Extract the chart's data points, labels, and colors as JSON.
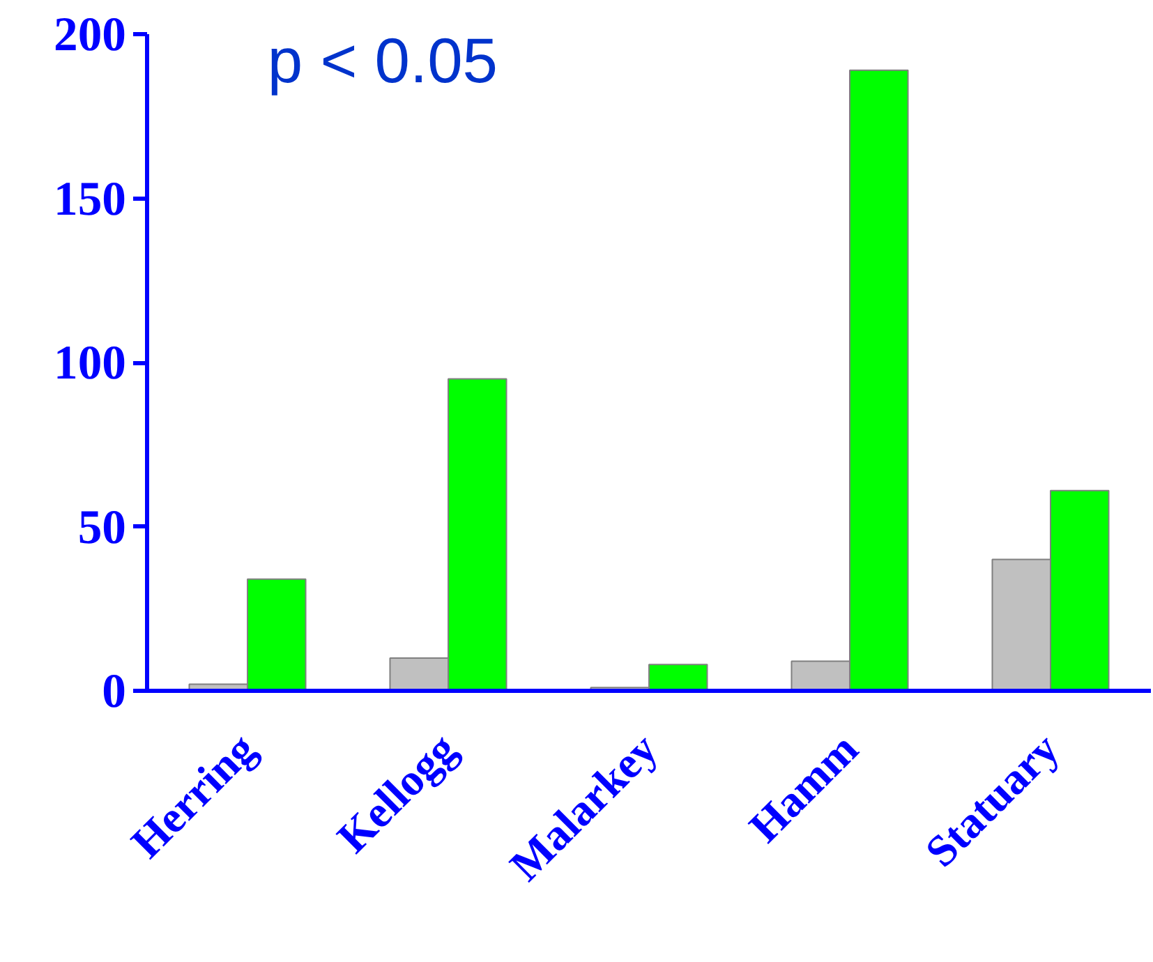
{
  "chart_data": {
    "type": "bar",
    "categories": [
      "Herring",
      "Kellogg",
      "Malarkey",
      "Hamm",
      "Statuary"
    ],
    "series": [
      {
        "color": "#c0c0c0",
        "values": [
          2,
          10,
          1,
          9,
          40
        ]
      },
      {
        "color": "#00ff00",
        "values": [
          34,
          95,
          8,
          189,
          61
        ]
      }
    ],
    "ylim": [
      0,
      200
    ],
    "yticks": [
      0,
      50,
      100,
      150,
      200
    ],
    "annotations": [
      "p < 0.05"
    ],
    "grid": false
  }
}
